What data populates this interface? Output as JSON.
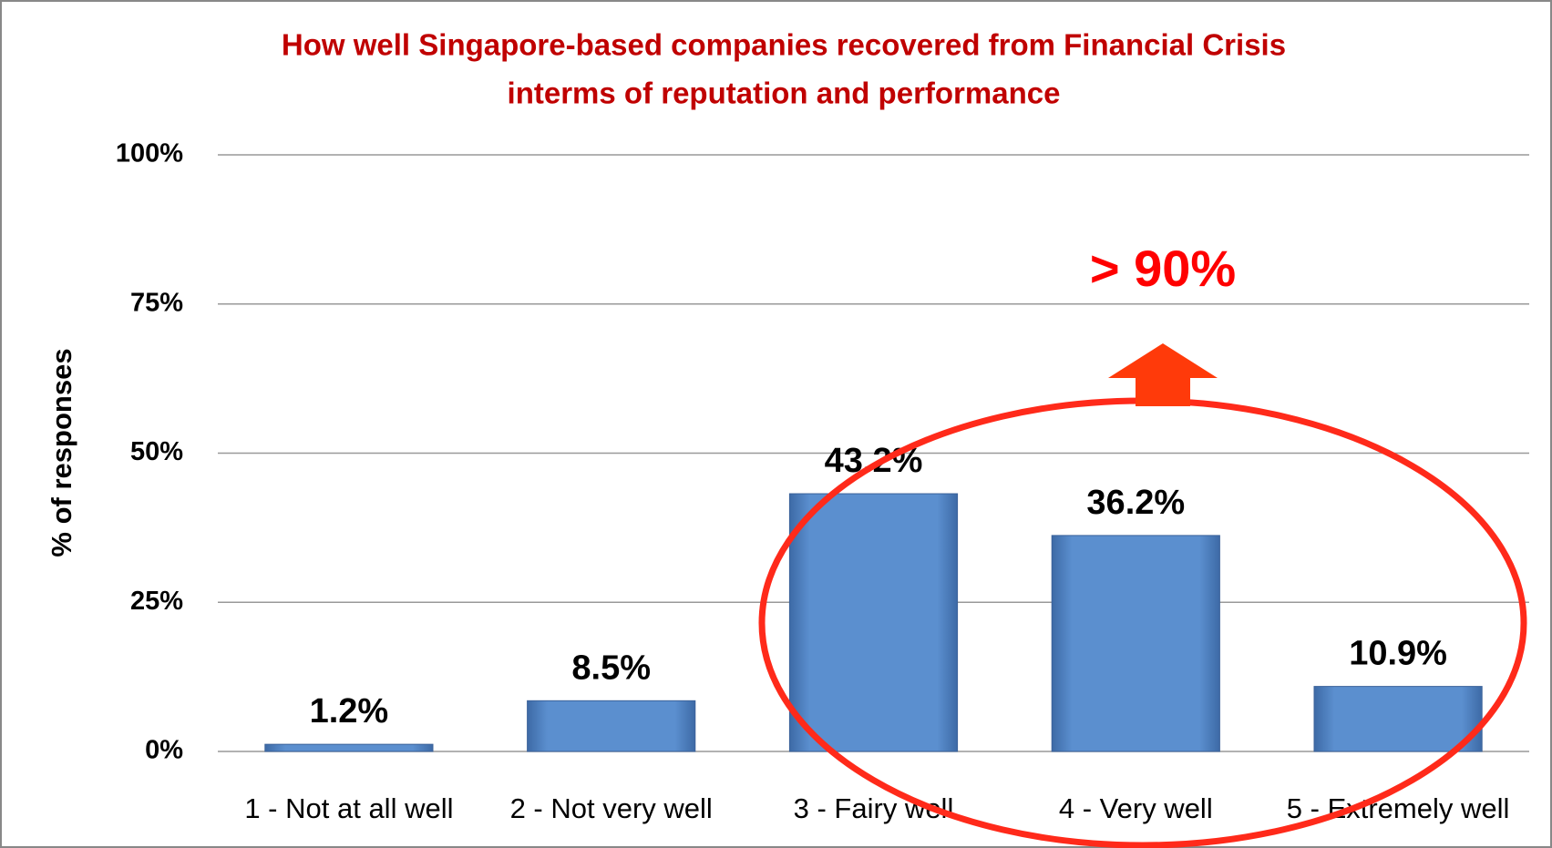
{
  "chart_data": {
    "type": "bar",
    "title": [
      "How well Singapore-based companies recovered from Financial Crisis",
      "interms of reputation and performance"
    ],
    "y_label": "% of responses",
    "annotation": "> 90%",
    "categories": [
      "1 - Not at all well",
      "2 - Not very well",
      "3 - Fairy well",
      "4 - Very well",
      "5 - Extremely well"
    ],
    "values": [
      1.2,
      8.5,
      43.2,
      36.2,
      10.9
    ],
    "value_labels": [
      "1.2%",
      "8.5%",
      "43.2%",
      "36.2%",
      "10.9%"
    ],
    "color": "#5b8fcf",
    "ylim": [
      0,
      100
    ],
    "yticks": [
      {
        "value": 0,
        "label": "0%"
      },
      {
        "value": 25,
        "label": "25%"
      },
      {
        "value": 50,
        "label": "50%"
      },
      {
        "value": 75,
        "label": "75%"
      },
      {
        "value": 100,
        "label": "100%"
      }
    ],
    "grid": true
  }
}
